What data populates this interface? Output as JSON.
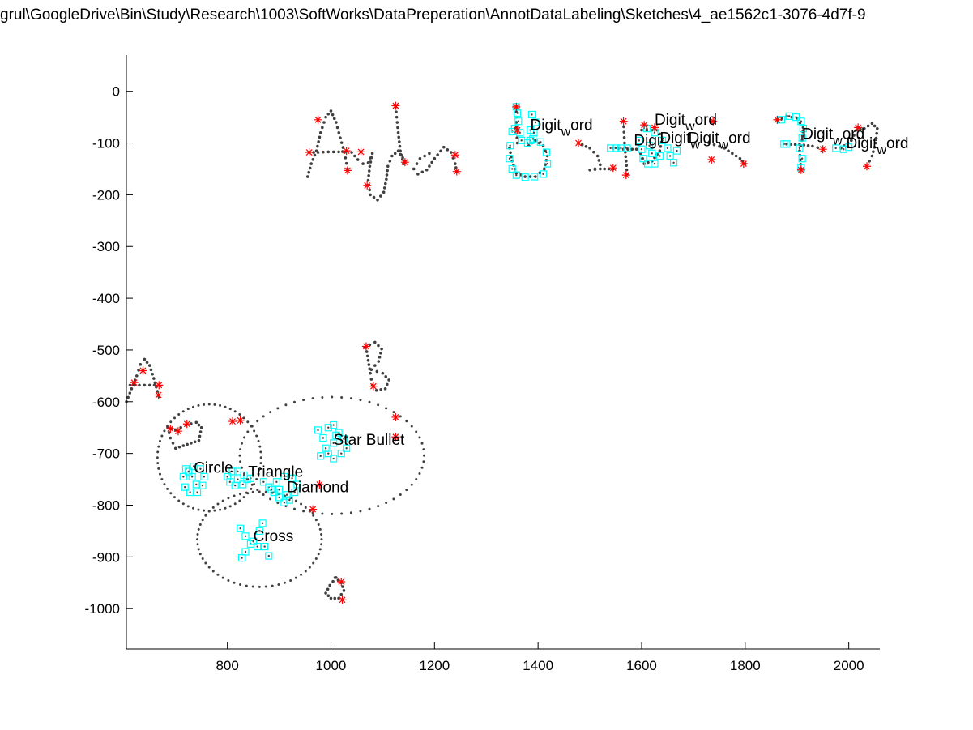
{
  "figure": {
    "title": "grul\\GoogleDrive\\Bin\\Study\\Research\\1003\\SoftWorks\\DataPreperation\\AnnotDataLabeling\\Sketches\\4_ae1562c1-3076-4d7f-9"
  },
  "chart_data": {
    "type": "scatter",
    "title": "grul\\GoogleDrive\\Bin\\Study\\Research\\1003\\SoftWorks\\DataPreperation\\AnnotDataLabeling\\Sketches\\4_ae1562c1-3076-4d7f-9",
    "xlabel": "",
    "ylabel": "",
    "xlim": [
      605,
      2060
    ],
    "ylim": [
      -1078,
      70
    ],
    "grid": false,
    "x_ticks": [
      800,
      1000,
      1200,
      1400,
      1600,
      1800,
      2000
    ],
    "x_tick_labels": [
      "800",
      "1000",
      "1200",
      "1400",
      "1600",
      "1800",
      "2000"
    ],
    "y_ticks": [
      0,
      -100,
      -200,
      -300,
      -400,
      -500,
      -600,
      -700,
      -800,
      -900,
      -1000
    ],
    "y_tick_labels": [
      "0",
      "-100",
      "-200",
      "-300",
      "-400",
      "-500",
      "-600",
      "-700",
      "-800",
      "-900",
      "-1000"
    ],
    "colors": {
      "stroke_points": "#404040",
      "corner_marks": "#ff0000",
      "shape_marks": "#00ffff",
      "axes": "#000000"
    },
    "strokes": [
      {
        "points": [
          [
            955,
            -165
          ],
          [
            962,
            -140
          ],
          [
            972,
            -115
          ],
          [
            980,
            -80
          ],
          [
            990,
            -50
          ],
          [
            1000,
            -38
          ],
          [
            1010,
            -60
          ],
          [
            1018,
            -90
          ],
          [
            1026,
            -118
          ],
          [
            1032,
            -150
          ]
        ]
      },
      {
        "points": [
          [
            958,
            -118
          ],
          [
            975,
            -118
          ],
          [
            995,
            -117
          ],
          [
            1015,
            -117
          ],
          [
            1030,
            -116
          ]
        ]
      },
      {
        "points": [
          [
            1040,
            -118
          ],
          [
            1052,
            -132
          ],
          [
            1062,
            -140
          ],
          [
            1072,
            -138
          ],
          [
            1080,
            -120
          ],
          [
            1075,
            -145
          ],
          [
            1072,
            -172
          ],
          [
            1076,
            -200
          ],
          [
            1090,
            -210
          ],
          [
            1102,
            -195
          ],
          [
            1107,
            -170
          ],
          [
            1110,
            -145
          ],
          [
            1118,
            -125
          ],
          [
            1130,
            -115
          ],
          [
            1143,
            -135
          ]
        ]
      },
      {
        "points": [
          [
            1125,
            -30
          ],
          [
            1130,
            -80
          ],
          [
            1134,
            -115
          ],
          [
            1140,
            -140
          ]
        ]
      },
      {
        "points": [
          [
            1190,
            -120
          ],
          [
            1172,
            -130
          ],
          [
            1160,
            -150
          ],
          [
            1168,
            -160
          ],
          [
            1185,
            -152
          ],
          [
            1200,
            -130
          ],
          [
            1218,
            -108
          ],
          [
            1232,
            -118
          ],
          [
            1240,
            -140
          ],
          [
            1243,
            -155
          ]
        ]
      },
      {
        "points": [
          [
            1358,
            -30
          ],
          [
            1358,
            -70
          ],
          [
            1360,
            -100
          ]
        ]
      },
      {
        "points": [
          [
            1345,
            -110
          ],
          [
            1350,
            -135
          ],
          [
            1358,
            -158
          ],
          [
            1375,
            -165
          ],
          [
            1395,
            -165
          ],
          [
            1412,
            -150
          ],
          [
            1418,
            -125
          ],
          [
            1410,
            -105
          ],
          [
            1395,
            -95
          ],
          [
            1382,
            -105
          ]
        ]
      },
      {
        "points": [
          [
            1478,
            -100
          ],
          [
            1500,
            -110
          ],
          [
            1515,
            -125
          ],
          [
            1520,
            -142
          ],
          [
            1510,
            -150
          ],
          [
            1500,
            -152
          ],
          [
            1520,
            -150
          ],
          [
            1545,
            -150
          ]
        ]
      },
      {
        "points": [
          [
            1565,
            -58
          ],
          [
            1567,
            -100
          ],
          [
            1570,
            -135
          ],
          [
            1572,
            -160
          ]
        ]
      },
      {
        "points": [
          [
            1545,
            -110
          ],
          [
            1565,
            -112
          ],
          [
            1590,
            -112
          ]
        ]
      },
      {
        "points": [
          [
            1600,
            -75
          ],
          [
            1630,
            -75
          ],
          [
            1640,
            -90
          ],
          [
            1635,
            -115
          ],
          [
            1620,
            -135
          ],
          [
            1605,
            -140
          ],
          [
            1598,
            -120
          ]
        ]
      },
      {
        "points": [
          [
            1730,
            -100
          ],
          [
            1760,
            -110
          ],
          [
            1790,
            -130
          ],
          [
            1800,
            -140
          ]
        ]
      },
      {
        "points": [
          [
            1862,
            -55
          ],
          [
            1880,
            -48
          ],
          [
            1900,
            -52
          ],
          [
            1912,
            -70
          ],
          [
            1910,
            -95
          ],
          [
            1905,
            -115
          ],
          [
            1908,
            -150
          ]
        ]
      },
      {
        "points": [
          [
            1880,
            -102
          ],
          [
            1905,
            -103
          ],
          [
            1930,
            -106
          ],
          [
            1950,
            -112
          ]
        ]
      },
      {
        "points": [
          [
            1985,
            -110
          ],
          [
            2005,
            -95
          ],
          [
            2015,
            -75
          ],
          [
            2030,
            -72
          ],
          [
            2045,
            -62
          ],
          [
            2055,
            -72
          ],
          [
            2052,
            -100
          ],
          [
            2045,
            -125
          ],
          [
            2035,
            -145
          ]
        ]
      },
      {
        "points": [
          [
            605,
            -600
          ],
          [
            615,
            -575
          ],
          [
            625,
            -550
          ],
          [
            632,
            -528
          ],
          [
            640,
            -518
          ],
          [
            650,
            -530
          ],
          [
            658,
            -555
          ],
          [
            665,
            -580
          ],
          [
            668,
            -590
          ]
        ]
      },
      {
        "points": [
          [
            612,
            -568
          ],
          [
            630,
            -568
          ],
          [
            650,
            -568
          ],
          [
            668,
            -568
          ]
        ]
      },
      {
        "points": [
          [
            1068,
            -495
          ],
          [
            1072,
            -520
          ],
          [
            1076,
            -545
          ],
          [
            1080,
            -568
          ]
        ]
      },
      {
        "points": [
          [
            1065,
            -495
          ],
          [
            1085,
            -485
          ],
          [
            1098,
            -498
          ],
          [
            1092,
            -522
          ],
          [
            1078,
            -538
          ],
          [
            1100,
            -545
          ],
          [
            1112,
            -558
          ],
          [
            1105,
            -575
          ],
          [
            1088,
            -578
          ]
        ]
      },
      {
        "points": [
          [
            685,
            -650
          ],
          [
            700,
            -655
          ],
          [
            720,
            -645
          ],
          [
            740,
            -640
          ],
          [
            750,
            -650
          ],
          [
            745,
            -675
          ],
          [
            730,
            -680
          ],
          [
            715,
            -685
          ],
          [
            700,
            -690
          ],
          [
            690,
            -670
          ],
          [
            685,
            -650
          ]
        ]
      },
      {
        "points": [
          [
            1008,
            -940
          ],
          [
            1020,
            -950
          ],
          [
            1025,
            -965
          ],
          [
            1015,
            -980
          ],
          [
            1000,
            -980
          ],
          [
            990,
            -970
          ],
          [
            998,
            -955
          ],
          [
            1010,
            -940
          ]
        ]
      }
    ],
    "ellipses": [
      {
        "cx": 765,
        "cy": -708,
        "rx": 100,
        "ry": 103
      },
      {
        "cx": 1002,
        "cy": -704,
        "rx": 178,
        "ry": 113
      },
      {
        "cx": 862,
        "cy": -866,
        "rx": 120,
        "ry": 92
      }
    ],
    "corner_points": [
      [
        620,
        -563
      ],
      [
        637,
        -540
      ],
      [
        668,
        -568
      ],
      [
        667,
        -587
      ],
      [
        690,
        -652
      ],
      [
        705,
        -657
      ],
      [
        722,
        -643
      ],
      [
        810,
        -638
      ],
      [
        825,
        -636
      ],
      [
        965,
        -808
      ],
      [
        978,
        -760
      ],
      [
        1068,
        -493
      ],
      [
        1082,
        -570
      ],
      [
        1125,
        -630
      ],
      [
        1125,
        -668
      ],
      [
        958,
        -118
      ],
      [
        975,
        -55
      ],
      [
        1030,
        -115
      ],
      [
        1032,
        -153
      ],
      [
        1058,
        -117
      ],
      [
        1070,
        -182
      ],
      [
        1125,
        -28
      ],
      [
        1143,
        -137
      ],
      [
        1240,
        -123
      ],
      [
        1243,
        -155
      ],
      [
        1478,
        -100
      ],
      [
        1545,
        -148
      ],
      [
        1565,
        -58
      ],
      [
        1570,
        -162
      ],
      [
        1735,
        -132
      ],
      [
        1738,
        -58
      ],
      [
        1797,
        -140
      ],
      [
        1862,
        -55
      ],
      [
        1908,
        -152
      ],
      [
        1950,
        -112
      ],
      [
        2018,
        -70
      ],
      [
        2035,
        -145
      ],
      [
        1020,
        -948
      ],
      [
        1022,
        -983
      ],
      [
        1358,
        -30
      ],
      [
        1360,
        -75
      ],
      [
        1605,
        -65
      ],
      [
        1625,
        -70
      ]
    ],
    "shape_points": [
      [
        1350,
        -78
      ],
      [
        1355,
        -72
      ],
      [
        1358,
        -30
      ],
      [
        1360,
        -42
      ],
      [
        1362,
        -58
      ],
      [
        1365,
        -80
      ],
      [
        1368,
        -95
      ],
      [
        1385,
        -75
      ],
      [
        1388,
        -45
      ],
      [
        1395,
        -60
      ],
      [
        1392,
        -80
      ],
      [
        1385,
        -95
      ],
      [
        1346,
        -105
      ],
      [
        1345,
        -130
      ],
      [
        1350,
        -150
      ],
      [
        1358,
        -162
      ],
      [
        1375,
        -166
      ],
      [
        1393,
        -165
      ],
      [
        1410,
        -160
      ],
      [
        1418,
        -140
      ],
      [
        1416,
        -118
      ],
      [
        1405,
        -98
      ],
      [
        1390,
        -92
      ],
      [
        1380,
        -100
      ],
      [
        1595,
        -95
      ],
      [
        1600,
        -112
      ],
      [
        1603,
        -130
      ],
      [
        1612,
        -140
      ],
      [
        1625,
        -140
      ],
      [
        1635,
        -125
      ],
      [
        1640,
        -95
      ],
      [
        1625,
        -80
      ],
      [
        1610,
        -72
      ],
      [
        1615,
        -105
      ],
      [
        1620,
        -120
      ],
      [
        1540,
        -110
      ],
      [
        1550,
        -110
      ],
      [
        1560,
        -110
      ],
      [
        1572,
        -110
      ],
      [
        1650,
        -110
      ],
      [
        1655,
        -125
      ],
      [
        1662,
        -138
      ],
      [
        1668,
        -115
      ],
      [
        1870,
        -55
      ],
      [
        1885,
        -48
      ],
      [
        1898,
        -50
      ],
      [
        1908,
        -58
      ],
      [
        1912,
        -72
      ],
      [
        1910,
        -90
      ],
      [
        1905,
        -110
      ],
      [
        1910,
        -130
      ],
      [
        1908,
        -148
      ],
      [
        1875,
        -102
      ],
      [
        1880,
        -102
      ],
      [
        1975,
        -110
      ],
      [
        1990,
        -112
      ],
      [
        2000,
        -108
      ],
      [
        720,
        -730
      ],
      [
        715,
        -745
      ],
      [
        718,
        -765
      ],
      [
        728,
        -775
      ],
      [
        742,
        -775
      ],
      [
        752,
        -762
      ],
      [
        755,
        -745
      ],
      [
        748,
        -730
      ],
      [
        735,
        -725
      ],
      [
        725,
        -735
      ],
      [
        732,
        -745
      ],
      [
        740,
        -760
      ],
      [
        800,
        -745
      ],
      [
        810,
        -735
      ],
      [
        820,
        -735
      ],
      [
        832,
        -742
      ],
      [
        845,
        -748
      ],
      [
        830,
        -760
      ],
      [
        815,
        -762
      ],
      [
        805,
        -755
      ],
      [
        820,
        -750
      ],
      [
        838,
        -750
      ],
      [
        870,
        -755
      ],
      [
        880,
        -765
      ],
      [
        890,
        -775
      ],
      [
        900,
        -785
      ],
      [
        910,
        -795
      ],
      [
        920,
        -790
      ],
      [
        930,
        -775
      ],
      [
        935,
        -760
      ],
      [
        925,
        -748
      ],
      [
        910,
        -745
      ],
      [
        895,
        -755
      ],
      [
        885,
        -770
      ],
      [
        900,
        -770
      ],
      [
        915,
        -780
      ],
      [
        975,
        -655
      ],
      [
        985,
        -670
      ],
      [
        990,
        -690
      ],
      [
        980,
        -705
      ],
      [
        995,
        -650
      ],
      [
        1005,
        -645
      ],
      [
        1015,
        -660
      ],
      [
        1025,
        -672
      ],
      [
        1030,
        -690
      ],
      [
        1020,
        -700
      ],
      [
        1005,
        -710
      ],
      [
        995,
        -700
      ],
      [
        1005,
        -680
      ],
      [
        1010,
        -665
      ],
      [
        825,
        -845
      ],
      [
        835,
        -860
      ],
      [
        845,
        -875
      ],
      [
        835,
        -890
      ],
      [
        828,
        -902
      ],
      [
        850,
        -870
      ],
      [
        862,
        -850
      ],
      [
        868,
        -835
      ],
      [
        872,
        -880
      ],
      [
        880,
        -898
      ],
      [
        858,
        -880
      ]
    ],
    "annotations": [
      {
        "text": "Digit",
        "sub": "w",
        "tail": "ord",
        "x": 1385,
        "y": -75
      },
      {
        "text": "Digit",
        "sub": "w",
        "tail": "ord",
        "x": 1625,
        "y": -65
      },
      {
        "text": "Digi",
        "sub": "",
        "tail": "",
        "x": 1585,
        "y": -105
      },
      {
        "text": "Digit",
        "sub": "w",
        "tail": "",
        "x": 1635,
        "y": -100
      },
      {
        "text": "Digit",
        "sub": "w",
        "tail": "ord",
        "x": 1690,
        "y": -100
      },
      {
        "text": "Digit",
        "sub": "w",
        "tail": "ord",
        "x": 1910,
        "y": -92
      },
      {
        "text": "Digit",
        "sub": "w",
        "tail": "ord",
        "x": 1995,
        "y": -110
      },
      {
        "text": "Star Bullet",
        "sub": "",
        "tail": "",
        "x": 1005,
        "y": -683
      },
      {
        "text": "Circle",
        "sub": "",
        "tail": "",
        "x": 735,
        "y": -737
      },
      {
        "text": "Triangle",
        "sub": "",
        "tail": "",
        "x": 840,
        "y": -745
      },
      {
        "text": "Diamond",
        "sub": "",
        "tail": "",
        "x": 915,
        "y": -775
      },
      {
        "text": "Cross",
        "sub": "",
        "tail": "",
        "x": 850,
        "y": -870
      }
    ]
  }
}
